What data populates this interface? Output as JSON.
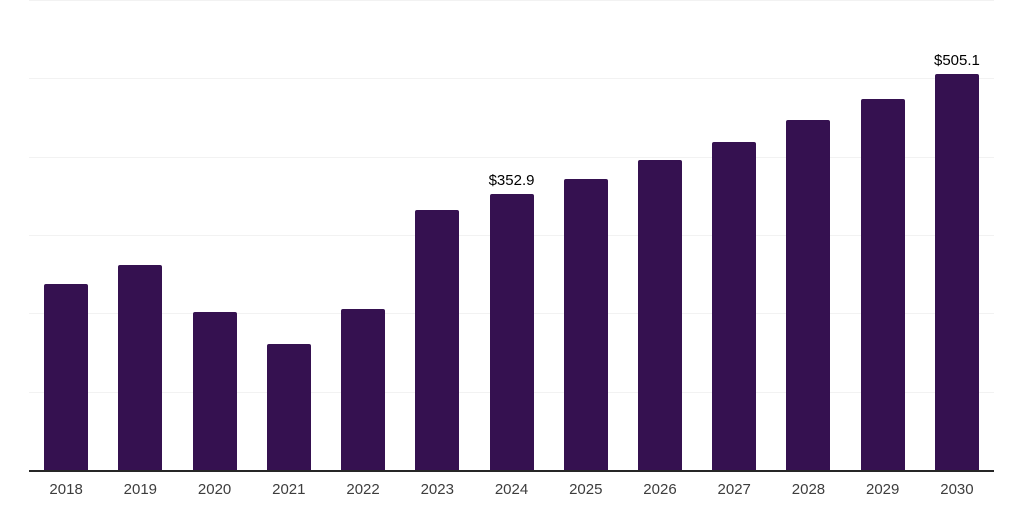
{
  "chart": {
    "background_color": "#ffffff",
    "bar_color": "#351150",
    "axis_line_color": "#262626",
    "gridline_color": "#f2f2f2",
    "tick_label_color": "#3d3d3d",
    "data_label_color": "#000000"
  },
  "chart_data": {
    "type": "bar",
    "title": "",
    "xlabel": "",
    "ylabel": "",
    "categories": [
      "2018",
      "2019",
      "2020",
      "2021",
      "2022",
      "2023",
      "2024",
      "2025",
      "2026",
      "2027",
      "2028",
      "2029",
      "2030"
    ],
    "values": [
      238.0,
      261.5,
      202.3,
      161.0,
      205.0,
      332.3,
      352.9,
      371.9,
      395.2,
      418.9,
      446.5,
      473.2,
      505.1
    ],
    "bar_labels": [
      "",
      "",
      "",
      "",
      "",
      "",
      "$352.9",
      "",
      "",
      "",
      "",
      "",
      "$505.1"
    ],
    "ylim": [
      0,
      600
    ],
    "gridline_step": 100,
    "grid": true,
    "y_tick_labels_visible": false,
    "legend_position": "none"
  }
}
